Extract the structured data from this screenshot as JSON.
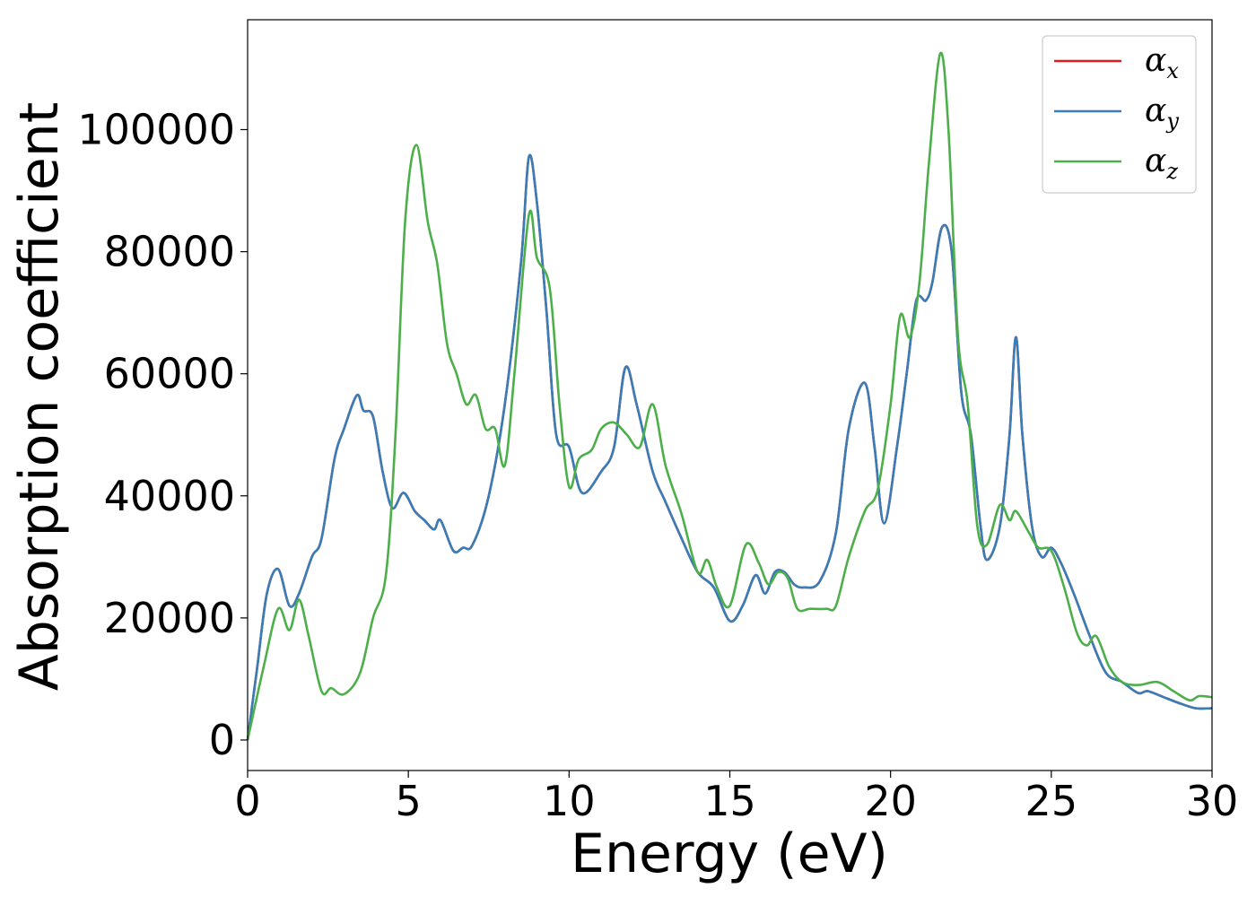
{
  "chart_data": {
    "type": "line",
    "xlabel": "Energy (eV)",
    "ylabel": "Absorption coefficient",
    "xlim": [
      0,
      30
    ],
    "ylim": [
      -5000,
      118000
    ],
    "xticks": [
      0,
      5,
      10,
      15,
      20,
      25,
      30
    ],
    "xtick_labels": [
      "0",
      "5",
      "10",
      "15",
      "20",
      "25",
      "30"
    ],
    "yticks": [
      0,
      20000,
      40000,
      60000,
      80000,
      100000
    ],
    "ytick_labels": [
      "0",
      "20000",
      "40000",
      "60000",
      "80000",
      "100000"
    ],
    "grid": false,
    "legend_position": "top-right",
    "series": [
      {
        "name": "α",
        "subscript": "x",
        "color": "#e41a1c",
        "x": [
          0,
          0.3,
          0.6,
          0.95,
          1.3,
          1.6,
          2.0,
          2.3,
          2.7,
          3.0,
          3.4,
          3.6,
          3.9,
          4.2,
          4.5,
          4.85,
          5.2,
          5.5,
          5.8,
          6.0,
          6.4,
          6.7,
          7.0,
          7.5,
          8.0,
          8.5,
          8.75,
          9.0,
          9.3,
          9.6,
          10.0,
          10.4,
          11.0,
          11.4,
          11.75,
          12.1,
          12.6,
          13.0,
          13.5,
          14.0,
          14.5,
          15.0,
          15.4,
          15.8,
          16.1,
          16.4,
          16.7,
          17.0,
          17.3,
          17.8,
          18.3,
          18.7,
          19.2,
          19.5,
          19.8,
          20.2,
          20.5,
          20.8,
          21.1,
          21.3,
          21.6,
          21.9,
          22.2,
          22.5,
          22.8,
          23.0,
          23.4,
          23.7,
          23.9,
          24.1,
          24.4,
          24.7,
          25.0,
          25.3,
          25.7,
          26.2,
          26.7,
          27.2,
          27.7,
          28.0,
          28.5,
          29.0,
          29.5,
          30.0
        ],
        "y": [
          0,
          12000,
          24000,
          28000,
          22000,
          24000,
          30000,
          33000,
          46000,
          51000,
          56500,
          54000,
          53000,
          44000,
          38000,
          40500,
          37500,
          36000,
          34500,
          36000,
          31000,
          31500,
          32000,
          40000,
          55000,
          78000,
          95500,
          88000,
          70000,
          50000,
          48000,
          40500,
          44000,
          48000,
          61000,
          55000,
          44000,
          39000,
          33000,
          27500,
          25000,
          19500,
          22000,
          27000,
          24000,
          27500,
          27500,
          25500,
          25000,
          26000,
          34000,
          51000,
          58500,
          48000,
          35500,
          48000,
          60000,
          72000,
          72000,
          75000,
          84000,
          80000,
          57000,
          50000,
          35000,
          29500,
          35000,
          50000,
          66000,
          50000,
          35000,
          30000,
          31500,
          29000,
          24000,
          17000,
          11000,
          9500,
          7700,
          8000,
          7000,
          6000,
          5200,
          5200
        ]
      },
      {
        "name": "α",
        "subscript": "y",
        "color": "#377eb8",
        "x": [
          0,
          0.3,
          0.6,
          0.95,
          1.3,
          1.6,
          2.0,
          2.3,
          2.7,
          3.0,
          3.4,
          3.6,
          3.9,
          4.2,
          4.5,
          4.85,
          5.2,
          5.5,
          5.8,
          6.0,
          6.4,
          6.7,
          7.0,
          7.5,
          8.0,
          8.5,
          8.75,
          9.0,
          9.3,
          9.6,
          10.0,
          10.4,
          11.0,
          11.4,
          11.75,
          12.1,
          12.6,
          13.0,
          13.5,
          14.0,
          14.5,
          15.0,
          15.4,
          15.8,
          16.1,
          16.4,
          16.7,
          17.0,
          17.3,
          17.8,
          18.3,
          18.7,
          19.2,
          19.5,
          19.8,
          20.2,
          20.5,
          20.8,
          21.1,
          21.3,
          21.6,
          21.9,
          22.2,
          22.5,
          22.8,
          23.0,
          23.4,
          23.7,
          23.9,
          24.1,
          24.4,
          24.7,
          25.0,
          25.3,
          25.7,
          26.2,
          26.7,
          27.2,
          27.7,
          28.0,
          28.5,
          29.0,
          29.5,
          30.0
        ],
        "y": [
          0,
          12000,
          24000,
          28000,
          22000,
          24000,
          30000,
          33000,
          46000,
          51000,
          56500,
          54000,
          53000,
          44000,
          38000,
          40500,
          37500,
          36000,
          34500,
          36000,
          31000,
          31500,
          32000,
          40000,
          55000,
          78000,
          95500,
          88000,
          70000,
          50000,
          48000,
          40500,
          44000,
          48000,
          61000,
          55000,
          44000,
          39000,
          33000,
          27500,
          25000,
          19500,
          22000,
          27000,
          24000,
          27500,
          27500,
          25500,
          25000,
          26000,
          34000,
          51000,
          58500,
          48000,
          35500,
          48000,
          60000,
          72000,
          72000,
          75000,
          84000,
          80000,
          57000,
          50000,
          35000,
          29500,
          35000,
          50000,
          66000,
          50000,
          35000,
          30000,
          31500,
          29000,
          24000,
          17000,
          11000,
          9500,
          7700,
          8000,
          7000,
          6000,
          5200,
          5200
        ]
      },
      {
        "name": "α",
        "subscript": "z",
        "color": "#4daf4a",
        "x": [
          0,
          0.5,
          0.95,
          1.3,
          1.6,
          1.9,
          2.3,
          2.6,
          3.0,
          3.5,
          3.9,
          4.3,
          4.6,
          4.9,
          5.25,
          5.6,
          5.9,
          6.2,
          6.5,
          6.8,
          7.1,
          7.4,
          7.7,
          8.0,
          8.3,
          8.75,
          9.0,
          9.4,
          9.7,
          10.0,
          10.3,
          10.7,
          11.0,
          11.4,
          11.8,
          12.2,
          12.6,
          13.0,
          13.5,
          14.0,
          14.3,
          14.6,
          15.0,
          15.5,
          15.9,
          16.2,
          16.5,
          16.8,
          17.1,
          17.5,
          18.0,
          18.3,
          18.7,
          19.2,
          19.6,
          20.0,
          20.3,
          20.6,
          20.9,
          21.2,
          21.55,
          21.8,
          22.1,
          22.4,
          22.7,
          23.0,
          23.4,
          23.7,
          23.9,
          24.3,
          24.6,
          25.0,
          25.4,
          25.8,
          26.1,
          26.4,
          26.8,
          27.2,
          27.7,
          28.3,
          28.8,
          29.3,
          29.6,
          30.0
        ],
        "y": [
          0,
          12000,
          21500,
          18000,
          23000,
          17000,
          8000,
          8500,
          7500,
          11000,
          20000,
          27000,
          50000,
          85000,
          97500,
          85000,
          78000,
          65000,
          60000,
          55000,
          56500,
          51000,
          51000,
          45000,
          60000,
          86000,
          79000,
          74000,
          55000,
          41500,
          46000,
          47500,
          51000,
          52000,
          50000,
          48000,
          55000,
          45000,
          37000,
          27500,
          29500,
          25000,
          22000,
          32000,
          29000,
          25500,
          27500,
          26500,
          21500,
          21500,
          21500,
          22000,
          30000,
          37500,
          41000,
          55000,
          69500,
          66000,
          75000,
          95000,
          112500,
          100000,
          66000,
          55000,
          35000,
          32000,
          38500,
          36000,
          37500,
          34000,
          31500,
          31000,
          25000,
          17500,
          15500,
          17000,
          12000,
          9500,
          9000,
          9500,
          8000,
          6500,
          7200,
          7000
        ]
      }
    ]
  }
}
